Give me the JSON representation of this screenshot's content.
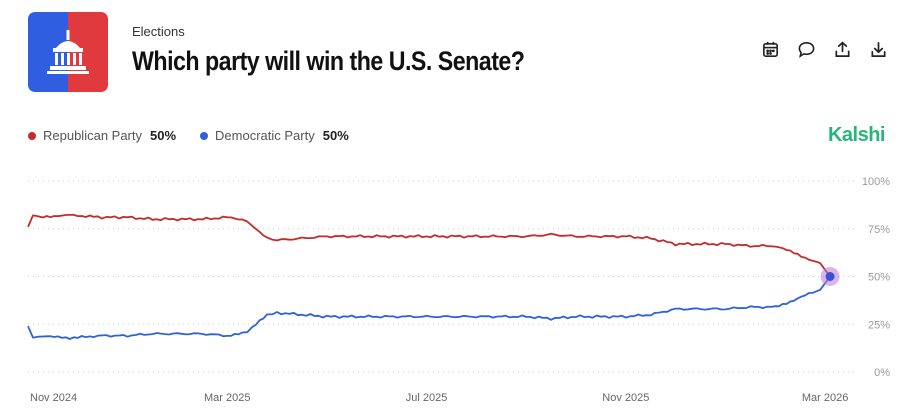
{
  "header": {
    "category": "Elections",
    "title": "Which party will win the U.S. Senate?",
    "logo_left_color": "#2f5fe0",
    "logo_right_color": "#e03a3e"
  },
  "actions": [
    {
      "name": "calendar-icon",
      "label": "calendar"
    },
    {
      "name": "comment-icon",
      "label": "comments"
    },
    {
      "name": "share-icon",
      "label": "share"
    },
    {
      "name": "download-icon",
      "label": "download"
    }
  ],
  "legend": [
    {
      "name": "Republican Party",
      "value": "50%",
      "color": "#c42b2b"
    },
    {
      "name": "Democratic Party",
      "value": "50%",
      "color": "#2f62d9"
    }
  ],
  "brand": "Kalshi",
  "chart_data": {
    "type": "line",
    "title": "Which party will win the U.S. Senate?",
    "xlabel": "",
    "ylabel": "",
    "x_tick_labels": [
      "Nov 2024",
      "Mar 2025",
      "Jul 2025",
      "Nov 2025",
      "Mar 2026"
    ],
    "y_tick_labels": [
      "100%",
      "75%",
      "50%",
      "25%",
      "0%"
    ],
    "y_ticks": [
      100,
      75,
      50,
      25,
      0
    ],
    "ylim": [
      0,
      100
    ],
    "x_range_months": [
      0,
      16.5
    ],
    "grid": true,
    "legend_position": "top-left",
    "series": [
      {
        "name": "Republican Party",
        "color": "#c42b2b",
        "x": [
          0,
          0.1,
          0.3,
          0.6,
          1.0,
          1.4,
          2.0,
          2.5,
          3.0,
          3.5,
          4.0,
          4.3,
          4.5,
          4.8,
          5.0,
          5.5,
          6.0,
          7.0,
          8.0,
          9.0,
          10.0,
          10.5,
          11.0,
          11.5,
          12.0,
          12.5,
          13.0,
          13.5,
          14.0,
          14.5,
          15.0,
          15.3,
          15.6,
          15.9,
          16.1
        ],
        "values": [
          76,
          82,
          81,
          82,
          82,
          81,
          81,
          80,
          80,
          80,
          81,
          80,
          77,
          70,
          69,
          70,
          71,
          71,
          71,
          71,
          71,
          72,
          71,
          71,
          71,
          70,
          67,
          67,
          67,
          66,
          66,
          63,
          60,
          57,
          50
        ]
      },
      {
        "name": "Democratic Party",
        "color": "#2f62d9",
        "x": [
          0,
          0.1,
          0.3,
          0.6,
          1.0,
          1.4,
          2.0,
          2.5,
          3.0,
          3.5,
          4.0,
          4.3,
          4.5,
          4.8,
          5.0,
          5.5,
          6.0,
          7.0,
          8.0,
          9.0,
          10.0,
          10.5,
          11.0,
          11.5,
          12.0,
          12.5,
          13.0,
          13.5,
          14.0,
          14.5,
          15.0,
          15.3,
          15.6,
          15.9,
          16.1
        ],
        "values": [
          24,
          18,
          19,
          18,
          18,
          19,
          19,
          20,
          20,
          20,
          19,
          20,
          23,
          30,
          31,
          30,
          29,
          29,
          29,
          29,
          29,
          28,
          29,
          29,
          29,
          30,
          33,
          33,
          33,
          34,
          34,
          37,
          40,
          43,
          50
        ]
      }
    ]
  }
}
